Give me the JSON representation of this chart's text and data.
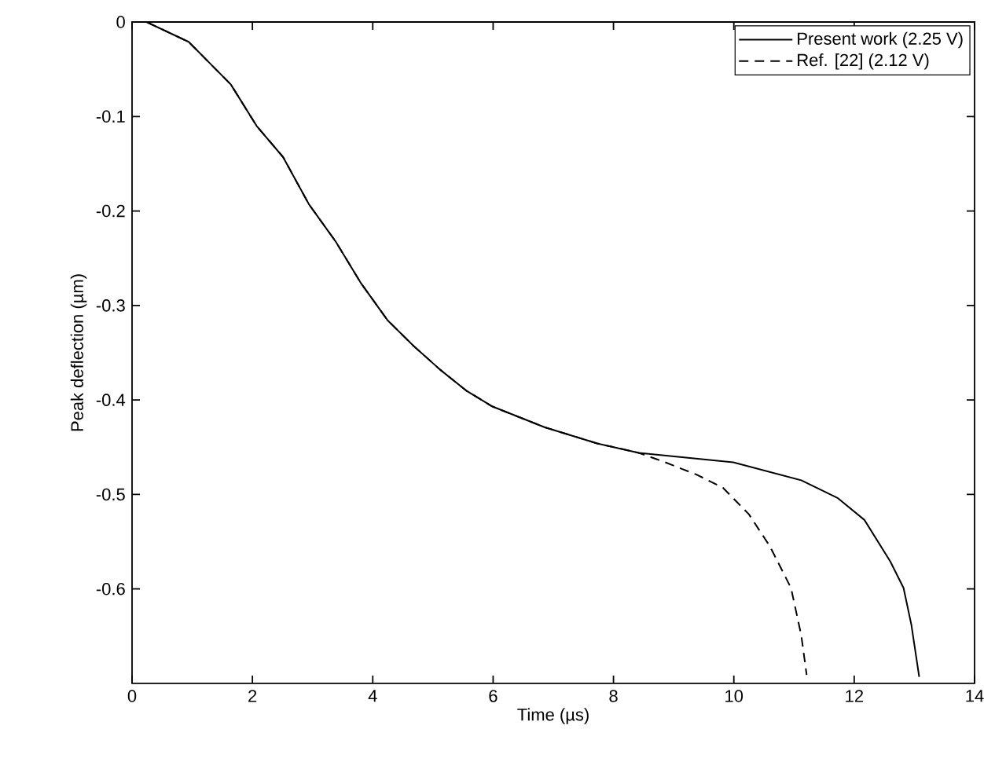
{
  "chart_data": {
    "type": "line",
    "xlabel": "Time (µs)",
    "ylabel": "Peak deflection (µm)",
    "xlim": [
      0,
      14
    ],
    "ylim": [
      -0.7,
      0
    ],
    "xticks": [
      0,
      2,
      4,
      6,
      8,
      10,
      12,
      14
    ],
    "yticks": [
      -0.6,
      -0.5,
      -0.4,
      -0.3,
      -0.2,
      -0.1,
      0
    ],
    "legend": "top right",
    "grid": false,
    "marker": "none",
    "series": [
      {
        "name": "Present work (2.25 V)",
        "color": "#000000",
        "line_style": "solid",
        "x": [
          0,
          0.24,
          0.94,
          1.64,
          2.07,
          2.51,
          2.94,
          3.38,
          3.81,
          4.25,
          4.68,
          5.12,
          5.55,
          5.99,
          6.86,
          7.73,
          8.42,
          9.99,
          11.12,
          11.73,
          12.17,
          12.6,
          12.82,
          12.95,
          13.08
        ],
        "values": [
          0,
          0,
          -0.021,
          -0.066,
          -0.11,
          -0.143,
          -0.193,
          -0.232,
          -0.277,
          -0.316,
          -0.343,
          -0.368,
          -0.39,
          -0.407,
          -0.429,
          -0.446,
          -0.456,
          -0.466,
          -0.485,
          -0.504,
          -0.527,
          -0.571,
          -0.599,
          -0.638,
          -0.693
        ]
      },
      {
        "name": "Ref. [22]        (2.12 V)",
        "color": "#000000",
        "line_style": "dashed",
        "x": [
          0,
          0.24,
          0.94,
          1.64,
          2.07,
          2.51,
          2.94,
          3.38,
          3.81,
          4.25,
          4.68,
          5.12,
          5.55,
          5.99,
          6.86,
          7.73,
          8.42,
          8.86,
          9.38,
          9.82,
          10.25,
          10.6,
          10.95,
          11.12,
          11.21
        ],
        "values": [
          0,
          0,
          -0.021,
          -0.066,
          -0.11,
          -0.143,
          -0.193,
          -0.232,
          -0.277,
          -0.316,
          -0.343,
          -0.368,
          -0.39,
          -0.407,
          -0.429,
          -0.446,
          -0.456,
          -0.466,
          -0.479,
          -0.493,
          -0.521,
          -0.555,
          -0.599,
          -0.649,
          -0.691
        ]
      }
    ]
  }
}
